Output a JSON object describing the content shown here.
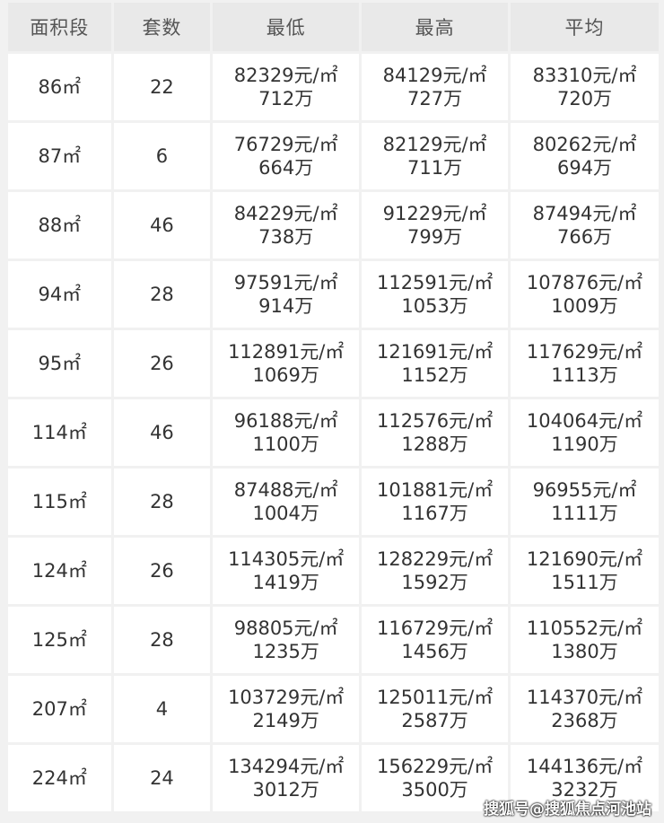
{
  "table": {
    "headers": [
      "面积段",
      "套数",
      "最低",
      "最高",
      "平均"
    ],
    "rows": [
      {
        "area": "86㎡",
        "count": "22",
        "min_price": "82329元/㎡",
        "min_total": "712万",
        "max_price": "84129元/㎡",
        "max_total": "727万",
        "avg_price": "83310元/㎡",
        "avg_total": "720万"
      },
      {
        "area": "87㎡",
        "count": "6",
        "min_price": "76729元/㎡",
        "min_total": "664万",
        "max_price": "82129元/㎡",
        "max_total": "711万",
        "avg_price": "80262元/㎡",
        "avg_total": "694万"
      },
      {
        "area": "88㎡",
        "count": "46",
        "min_price": "84229元/㎡",
        "min_total": "738万",
        "max_price": "91229元/㎡",
        "max_total": "799万",
        "avg_price": "87494元/㎡",
        "avg_total": "766万"
      },
      {
        "area": "94㎡",
        "count": "28",
        "min_price": "97591元/㎡",
        "min_total": "914万",
        "max_price": "112591元/㎡",
        "max_total": "1053万",
        "avg_price": "107876元/㎡",
        "avg_total": "1009万"
      },
      {
        "area": "95㎡",
        "count": "26",
        "min_price": "112891元/㎡",
        "min_total": "1069万",
        "max_price": "121691元/㎡",
        "max_total": "1152万",
        "avg_price": "117629元/㎡",
        "avg_total": "1113万"
      },
      {
        "area": "114㎡",
        "count": "46",
        "min_price": "96188元/㎡",
        "min_total": "1100万",
        "max_price": "112576元/㎡",
        "max_total": "1288万",
        "avg_price": "104064元/㎡",
        "avg_total": "1190万"
      },
      {
        "area": "115㎡",
        "count": "28",
        "min_price": "87488元/㎡",
        "min_total": "1004万",
        "max_price": "101881元/㎡",
        "max_total": "1167万",
        "avg_price": "96955元/㎡",
        "avg_total": "1111万"
      },
      {
        "area": "124㎡",
        "count": "26",
        "min_price": "114305元/㎡",
        "min_total": "1419万",
        "max_price": "128229元/㎡",
        "max_total": "1592万",
        "avg_price": "121690元/㎡",
        "avg_total": "1511万"
      },
      {
        "area": "125㎡",
        "count": "28",
        "min_price": "98805元/㎡",
        "min_total": "1235万",
        "max_price": "116729元/㎡",
        "max_total": "1456万",
        "avg_price": "110552元/㎡",
        "avg_total": "1380万"
      },
      {
        "area": "207㎡",
        "count": "4",
        "min_price": "103729元/㎡",
        "min_total": "2149万",
        "max_price": "125011元/㎡",
        "max_total": "2587万",
        "avg_price": "114370元/㎡",
        "avg_total": "2368万"
      },
      {
        "area": "224㎡",
        "count": "24",
        "min_price": "134294元/㎡",
        "min_total": "3012万",
        "max_price": "156229元/㎡",
        "max_total": "3500万",
        "avg_price": "144136元/㎡",
        "avg_total": "3232万"
      }
    ]
  },
  "watermark": "搜狐号@搜狐焦点河池站"
}
